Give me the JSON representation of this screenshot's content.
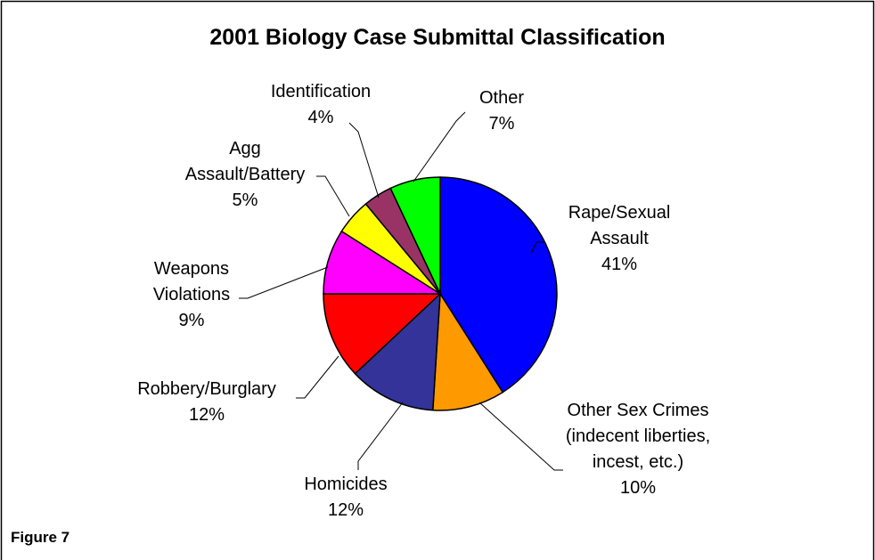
{
  "chart_data": {
    "type": "pie",
    "title": "2001 Biology Case Submittal Classification",
    "categories": [
      "Rape/Sexual Assault",
      "Other Sex Crimes (indecent liberties, incest, etc.)",
      "Homicides",
      "Robbery/Burglary",
      "Weapons Violations",
      "Agg Assault/Battery",
      "Identification",
      "Other"
    ],
    "values": [
      41,
      10,
      12,
      12,
      9,
      5,
      4,
      7
    ],
    "value_labels": [
      "41%",
      "10%",
      "12%",
      "12%",
      "9%",
      "5%",
      "4%",
      "7%"
    ],
    "colors": [
      "#0000ff",
      "#ff9900",
      "#333399",
      "#ff0000",
      "#ff00ff",
      "#ffff00",
      "#993366",
      "#00ff00"
    ]
  },
  "figure_label": "Figure 7"
}
